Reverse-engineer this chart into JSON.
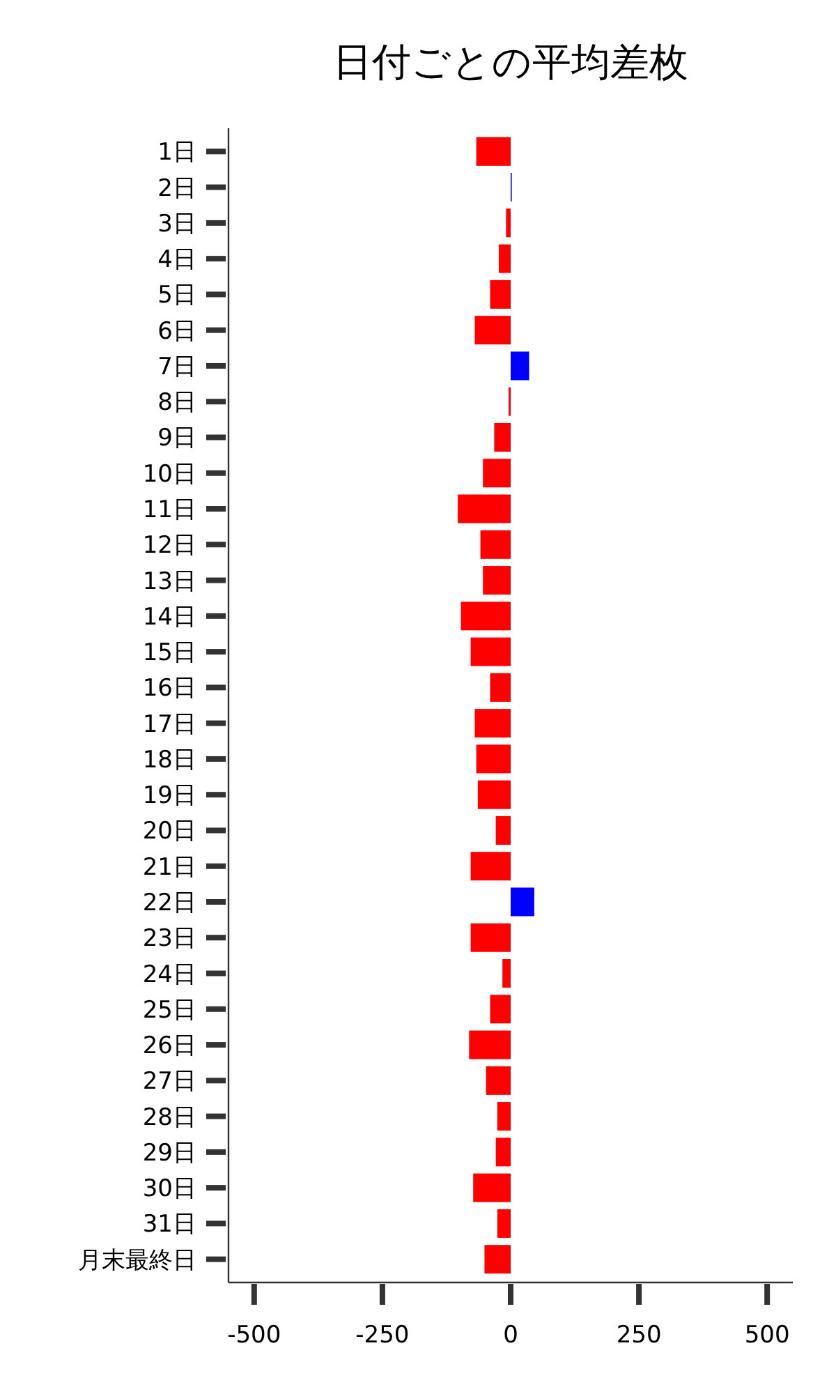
{
  "chart_data": {
    "type": "bar",
    "orientation": "horizontal",
    "title": "日付ごとの平均差枚",
    "categories": [
      "1日",
      "2日",
      "3日",
      "4日",
      "5日",
      "6日",
      "7日",
      "8日",
      "9日",
      "10日",
      "11日",
      "12日",
      "13日",
      "14日",
      "15日",
      "16日",
      "17日",
      "18日",
      "19日",
      "20日",
      "21日",
      "22日",
      "23日",
      "24日",
      "25日",
      "26日",
      "27日",
      "28日",
      "29日",
      "30日",
      "31日",
      "月末最終日"
    ],
    "values": [
      -67,
      1,
      -9,
      -23,
      -40,
      -70,
      36,
      -4,
      -32,
      -54,
      -103,
      -59,
      -54,
      -97,
      -78,
      -40,
      -70,
      -67,
      -64,
      -29,
      -78,
      46,
      -78,
      -16,
      -40,
      -81,
      -48,
      -26,
      -29,
      -73,
      -26,
      -51
    ],
    "colors": [
      "#ff0000",
      "#0000ff",
      "#ff0000",
      "#ff0000",
      "#ff0000",
      "#ff0000",
      "#0000ff",
      "#ff0000",
      "#ff0000",
      "#ff0000",
      "#ff0000",
      "#ff0000",
      "#ff0000",
      "#ff0000",
      "#ff0000",
      "#ff0000",
      "#ff0000",
      "#ff0000",
      "#ff0000",
      "#ff0000",
      "#ff0000",
      "#0000ff",
      "#ff0000",
      "#ff0000",
      "#ff0000",
      "#ff0000",
      "#ff0000",
      "#ff0000",
      "#ff0000",
      "#ff0000",
      "#ff0000",
      "#ff0000"
    ],
    "xlim": [
      -550,
      550
    ],
    "xticks": [
      -500,
      -250,
      0,
      250,
      500
    ],
    "grid": false
  }
}
